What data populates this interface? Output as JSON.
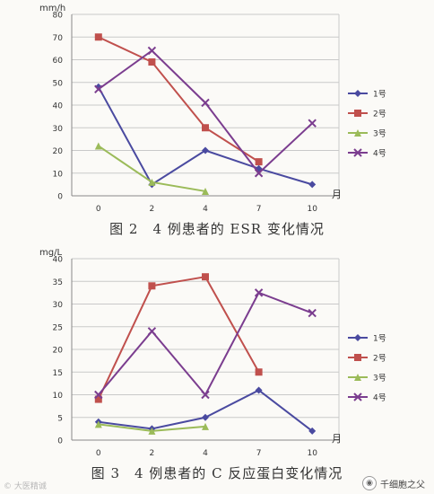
{
  "chart_data": [
    {
      "type": "line",
      "title": "图 2　4 例患者的 ESR 变化情况",
      "ylabel": "mm/h",
      "xlabel": "月",
      "x": [
        0,
        2,
        4,
        7,
        10
      ],
      "categories": [
        "0",
        "2",
        "4",
        "7",
        "10"
      ],
      "ylim": [
        0,
        80
      ],
      "yticks": [
        0,
        10,
        20,
        30,
        40,
        50,
        60,
        70,
        80
      ],
      "grid": true,
      "legend": "right",
      "series": [
        {
          "name": "1号",
          "color": "#4a4aa0",
          "marker": "diamond",
          "values": [
            48,
            5,
            20,
            12,
            5
          ]
        },
        {
          "name": "2号",
          "color": "#c0504d",
          "marker": "square",
          "values": [
            70,
            59,
            30,
            15,
            null
          ]
        },
        {
          "name": "3号",
          "color": "#9bbb59",
          "marker": "triangle",
          "values": [
            22,
            6,
            2,
            null,
            null
          ]
        },
        {
          "name": "4号",
          "color": "#7b3d8f",
          "marker": "x",
          "values": [
            47,
            64,
            41,
            10,
            32
          ]
        }
      ]
    },
    {
      "type": "line",
      "title": "图 3　4 例患者的 C 反应蛋白变化情况",
      "ylabel": "mg/L",
      "xlabel": "月",
      "x": [
        0,
        2,
        4,
        7,
        10
      ],
      "categories": [
        "0",
        "2",
        "4",
        "7",
        "10"
      ],
      "ylim": [
        0,
        40
      ],
      "yticks": [
        0,
        5,
        10,
        15,
        20,
        25,
        30,
        35,
        40
      ],
      "grid": true,
      "legend": "right",
      "series": [
        {
          "name": "1号",
          "color": "#4a4aa0",
          "marker": "diamond",
          "values": [
            4,
            2.5,
            5,
            11,
            2
          ]
        },
        {
          "name": "2号",
          "color": "#c0504d",
          "marker": "square",
          "values": [
            9,
            34,
            36,
            15,
            null
          ]
        },
        {
          "name": "3号",
          "color": "#9bbb59",
          "marker": "triangle",
          "values": [
            3.5,
            2,
            3,
            null,
            null
          ]
        },
        {
          "name": "4号",
          "color": "#7b3d8f",
          "marker": "x",
          "values": [
            10,
            24,
            10,
            32.5,
            28
          ]
        }
      ]
    }
  ],
  "watermarks": {
    "left": "© 大医精诚",
    "right": "千细胞之父",
    "right_icon": "wechat-icon"
  }
}
